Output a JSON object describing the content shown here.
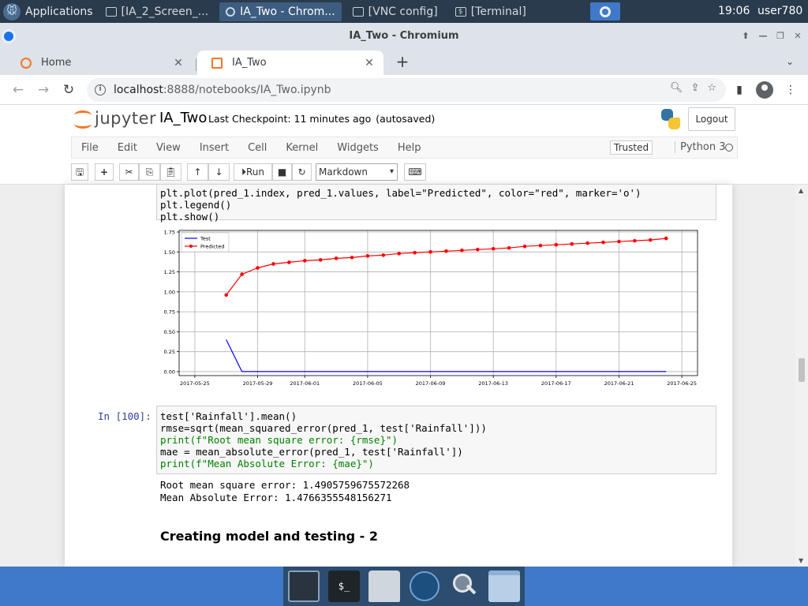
{
  "os_panel": {
    "applications_label": "Applications",
    "tasks": [
      {
        "label": "[IA_2_Screen_...",
        "icon": "folder-icon",
        "active": false
      },
      {
        "label": "IA_Two - Chrom...",
        "icon": "chromium-icon",
        "active": true
      },
      {
        "label": "[VNC config]",
        "icon": "window-icon",
        "active": false
      },
      {
        "label": "[Terminal]",
        "icon": "terminal-icon",
        "active": false
      }
    ],
    "clock": "19:06",
    "user": "user780"
  },
  "browser": {
    "window_title": "IA_Two - Chromium",
    "tabs": [
      {
        "label": "Home",
        "close": "✕"
      },
      {
        "label": "IA_Two",
        "close": "✕"
      }
    ],
    "new_tab": "+",
    "url_host": "localhost",
    "url_path": ":8888/notebooks/IA_Two.ipynb"
  },
  "jupyter": {
    "logo_text": "jupyter",
    "notebook_name": "IA_Two",
    "checkpoint": "Last Checkpoint: 11 minutes ago",
    "autosaved": "(autosaved)",
    "logout_label": "Logout",
    "menu": [
      "File",
      "Edit",
      "View",
      "Insert",
      "Cell",
      "Kernel",
      "Widgets",
      "Help"
    ],
    "trusted_label": "Trusted",
    "kernel_name": "Python 3",
    "run_label": "Run",
    "cell_type": "Markdown"
  },
  "cells": {
    "prev_code_lines": [
      "plt.plot(pred_1.index, pred_1.values, label=\"Predicted\", color=\"red\", marker='o')",
      "plt.legend()",
      "plt.show()"
    ],
    "cell100_prompt": "In [100]:",
    "cell100_lines": [
      "test['Rainfall'].mean()",
      "rmse=sqrt(mean_squared_error(pred_1, test['Rainfall']))",
      "print(f\"Root mean square error: {rmse}\")",
      "mae = mean_absolute_error(pred_1, test['Rainfall'])",
      "print(f\"Mean Absolute Error: {mae}\")"
    ],
    "output_lines": [
      "Root mean square error: 1.4905759675572268",
      "Mean Absolute Error: 1.4766355548156271"
    ],
    "heading": "Creating model and testing - 2"
  },
  "chart_data": {
    "type": "line",
    "xlabel": "",
    "ylabel": "",
    "x_ticks": [
      "2017-05-25",
      "2017-05-29",
      "2017-06-01",
      "2017-06-05",
      "2017-06-09",
      "2017-06-13",
      "2017-06-17",
      "2017-06-21",
      "2017-06-25"
    ],
    "y_ticks": [
      "0.00",
      "0.25",
      "0.50",
      "0.75",
      "1.00",
      "1.25",
      "1.50",
      "1.75"
    ],
    "ylim": [
      -0.05,
      1.77
    ],
    "legend_position": "upper-left",
    "grid": true,
    "series": [
      {
        "name": "Test",
        "color": "#0000ff",
        "marker": "none",
        "x": [
          "2017-05-27",
          "2017-05-28",
          "2017-05-29",
          "2017-05-30",
          "2017-05-31",
          "2017-06-01",
          "2017-06-02",
          "2017-06-03",
          "2017-06-04",
          "2017-06-05",
          "2017-06-06",
          "2017-06-07",
          "2017-06-08",
          "2017-06-09",
          "2017-06-10",
          "2017-06-11",
          "2017-06-12",
          "2017-06-13",
          "2017-06-14",
          "2017-06-15",
          "2017-06-16",
          "2017-06-17",
          "2017-06-18",
          "2017-06-19",
          "2017-06-20",
          "2017-06-21",
          "2017-06-22",
          "2017-06-23",
          "2017-06-24"
        ],
        "values": [
          0.4,
          0.0,
          0.0,
          0.0,
          0.0,
          0.0,
          0.0,
          0.0,
          0.0,
          0.0,
          0.0,
          0.0,
          0.0,
          0.0,
          0.0,
          0.0,
          0.0,
          0.0,
          0.0,
          0.0,
          0.0,
          0.0,
          0.0,
          0.0,
          0.0,
          0.0,
          0.0,
          0.0,
          0.0
        ]
      },
      {
        "name": "Predicted",
        "color": "#ff0000",
        "marker": "o",
        "x": [
          "2017-05-27",
          "2017-05-28",
          "2017-05-29",
          "2017-05-30",
          "2017-05-31",
          "2017-06-01",
          "2017-06-02",
          "2017-06-03",
          "2017-06-04",
          "2017-06-05",
          "2017-06-06",
          "2017-06-07",
          "2017-06-08",
          "2017-06-09",
          "2017-06-10",
          "2017-06-11",
          "2017-06-12",
          "2017-06-13",
          "2017-06-14",
          "2017-06-15",
          "2017-06-16",
          "2017-06-17",
          "2017-06-18",
          "2017-06-19",
          "2017-06-20",
          "2017-06-21",
          "2017-06-22",
          "2017-06-23",
          "2017-06-24"
        ],
        "values": [
          0.96,
          1.22,
          1.3,
          1.35,
          1.37,
          1.39,
          1.4,
          1.42,
          1.43,
          1.45,
          1.46,
          1.48,
          1.49,
          1.5,
          1.51,
          1.52,
          1.53,
          1.54,
          1.55,
          1.57,
          1.58,
          1.59,
          1.6,
          1.61,
          1.62,
          1.63,
          1.64,
          1.65,
          1.67
        ]
      }
    ]
  }
}
